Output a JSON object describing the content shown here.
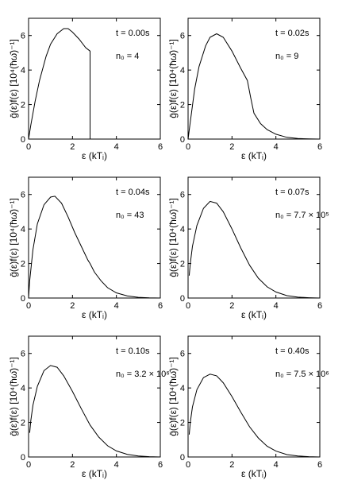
{
  "chart_data": [
    {
      "type": "line",
      "annotation_t": "t = 0.00s",
      "annotation_n0": "n₀ = 4",
      "xlabel": "ε  (kTᵢ)",
      "ylabel": "ḡ(ε)f(ε)  [10⁴(ħω̄)⁻¹]",
      "xlim": [
        0,
        6
      ],
      "ylim": [
        0,
        7
      ],
      "xticks": [
        "0",
        "2",
        "4",
        "6"
      ],
      "yticks": [
        "0",
        "2",
        "4",
        "6"
      ],
      "x": [
        0,
        0.1,
        0.3,
        0.5,
        0.8,
        1.0,
        1.3,
        1.6,
        1.8,
        2.0,
        2.3,
        2.6,
        2.8,
        2.8
      ],
      "y": [
        0,
        0.8,
        2.2,
        3.4,
        4.8,
        5.5,
        6.1,
        6.4,
        6.4,
        6.2,
        5.8,
        5.3,
        5.1,
        0
      ]
    },
    {
      "type": "line",
      "annotation_t": "t = 0.02s",
      "annotation_n0": "n₀ = 9",
      "xlabel": "ε  (kTᵢ)",
      "ylabel": "ḡ(ε)f(ε)  [10⁴(ħω̄)⁻¹]",
      "xlim": [
        0,
        6
      ],
      "ylim": [
        0,
        7
      ],
      "xticks": [
        "0",
        "2",
        "4",
        "6"
      ],
      "yticks": [
        "0",
        "2",
        "4",
        "6"
      ],
      "x": [
        0,
        0.1,
        0.3,
        0.5,
        0.8,
        1.0,
        1.3,
        1.6,
        2.0,
        2.4,
        2.7,
        2.85,
        3.0,
        3.3,
        3.6,
        4.0,
        4.5,
        5.0,
        5.5,
        6.0
      ],
      "y": [
        0,
        1.0,
        2.9,
        4.2,
        5.4,
        5.9,
        6.1,
        5.9,
        5.1,
        4.1,
        3.4,
        2.4,
        1.5,
        0.9,
        0.55,
        0.28,
        0.1,
        0.03,
        0.01,
        0
      ]
    },
    {
      "type": "line",
      "annotation_t": "t = 0.04s",
      "annotation_n0": "n₀ = 43",
      "xlabel": "ε  (kTᵢ)",
      "ylabel": "ḡ(ε)f(ε)  [10⁴(ħω̄)⁻¹]",
      "xlim": [
        0,
        6
      ],
      "ylim": [
        0,
        7
      ],
      "xticks": [
        "0",
        "2",
        "4",
        "6"
      ],
      "yticks": [
        "0",
        "2",
        "4",
        "6"
      ],
      "x": [
        0,
        0.05,
        0.2,
        0.4,
        0.7,
        1.0,
        1.2,
        1.5,
        1.8,
        2.1,
        2.4,
        2.7,
        2.8,
        3.0,
        3.3,
        3.6,
        4.0,
        4.5,
        5.0,
        5.5,
        6.0
      ],
      "y": [
        0,
        1.0,
        2.8,
        4.3,
        5.4,
        5.85,
        5.9,
        5.5,
        4.7,
        3.8,
        3.0,
        2.2,
        2.0,
        1.5,
        1.0,
        0.6,
        0.3,
        0.12,
        0.04,
        0.01,
        0
      ]
    },
    {
      "type": "line",
      "annotation_t": "t = 0.07s",
      "annotation_n0": "n₀ = 7.7 × 10⁵",
      "xlabel": "ε  (kTᵢ)",
      "ylabel": "ḡ(ε)f(ε)  [10⁴(ħω̄)⁻¹]",
      "xlim": [
        0,
        6
      ],
      "ylim": [
        0,
        7
      ],
      "xticks": [
        "0",
        "2",
        "4",
        "6"
      ],
      "yticks": [
        "0",
        "2",
        "4",
        "6"
      ],
      "x": [
        0.05,
        0.1,
        0.2,
        0.4,
        0.7,
        1.0,
        1.3,
        1.6,
        2.0,
        2.4,
        2.8,
        3.2,
        3.6,
        4.0,
        4.5,
        5.0,
        5.5,
        6.0
      ],
      "y": [
        1.3,
        2.0,
        3.0,
        4.2,
        5.2,
        5.6,
        5.5,
        5.0,
        4.0,
        2.9,
        1.9,
        1.15,
        0.65,
        0.35,
        0.14,
        0.05,
        0.02,
        0
      ]
    },
    {
      "type": "line",
      "annotation_t": "t = 0.10s",
      "annotation_n0": "n₀ = 3.2 × 10⁶",
      "xlabel": "ε  (kTᵢ)",
      "ylabel": "ḡ(ε)f(ε)  [10⁴(ħω̄)⁻¹]",
      "xlim": [
        0,
        6
      ],
      "ylim": [
        0,
        7
      ],
      "xticks": [
        "0",
        "2",
        "4",
        "6"
      ],
      "yticks": [
        "0",
        "2",
        "4",
        "6"
      ],
      "x": [
        0.05,
        0.1,
        0.2,
        0.4,
        0.7,
        1.0,
        1.3,
        1.6,
        2.0,
        2.4,
        2.8,
        3.2,
        3.6,
        4.0,
        4.5,
        5.0,
        5.5,
        6.0
      ],
      "y": [
        1.4,
        2.1,
        3.0,
        4.1,
        5.0,
        5.3,
        5.2,
        4.7,
        3.8,
        2.8,
        1.85,
        1.15,
        0.65,
        0.35,
        0.15,
        0.06,
        0.02,
        0
      ]
    },
    {
      "type": "line",
      "annotation_t": "t = 0.40s",
      "annotation_n0": "n₀ = 7.5 × 10⁶",
      "xlabel": "ε  (kTᵢ)",
      "ylabel": "ḡ(ε)f(ε)  [10⁴(ħω̄)⁻¹]",
      "xlim": [
        0,
        6
      ],
      "ylim": [
        0,
        7
      ],
      "xticks": [
        "0",
        "2",
        "4",
        "6"
      ],
      "yticks": [
        "0",
        "2",
        "4",
        "6"
      ],
      "x": [
        0.05,
        0.1,
        0.2,
        0.4,
        0.7,
        1.0,
        1.3,
        1.6,
        2.0,
        2.4,
        2.8,
        3.2,
        3.6,
        4.0,
        4.5,
        5.0,
        5.5,
        6.0
      ],
      "y": [
        1.3,
        2.0,
        2.9,
        3.9,
        4.6,
        4.8,
        4.7,
        4.3,
        3.5,
        2.6,
        1.75,
        1.1,
        0.62,
        0.34,
        0.14,
        0.06,
        0.02,
        0
      ]
    }
  ]
}
